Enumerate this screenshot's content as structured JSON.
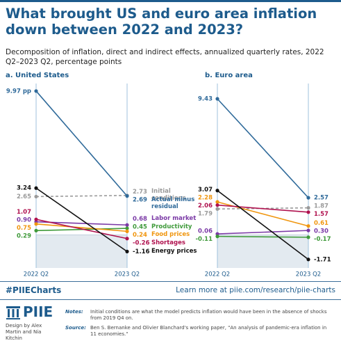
{
  "header": {
    "title": "What brought US and euro area inflation down between 2022 and 2023?",
    "subtitle": "Decomposition of inflation, direct and indirect effects, annualized quarterly rates, 2022 Q2–2023 Q2, percentage points"
  },
  "chart_data": [
    {
      "type": "line",
      "title": "a. United States",
      "categories": [
        "2022 Q2",
        "2023 Q2"
      ],
      "ylim": [
        -2.3,
        10.25
      ],
      "series": [
        {
          "name": "Initial conditions",
          "color": "#9a9a9a",
          "dash": true,
          "values": [
            2.65,
            2.73
          ],
          "value_labels": [
            "2.65",
            "2.73"
          ]
        },
        {
          "name": "Actual minus residual",
          "color": "#2f6a9a",
          "values": [
            9.97,
            2.69
          ],
          "value_labels": [
            "9.97 pp",
            "2.69"
          ]
        },
        {
          "name": "Labor market",
          "color": "#7b3aa6",
          "values": [
            0.9,
            0.68
          ],
          "value_labels": [
            "0.90",
            "0.68"
          ]
        },
        {
          "name": "Productivity",
          "color": "#3f9a3a",
          "values": [
            0.29,
            0.45
          ],
          "value_labels": [
            "0.29",
            "0.45"
          ]
        },
        {
          "name": "Food prices",
          "color": "#f0960f",
          "values": [
            0.75,
            0.24
          ],
          "value_labels": [
            "0.75",
            "0.24"
          ]
        },
        {
          "name": "Shortages",
          "color": "#b0124f",
          "values": [
            1.07,
            -0.26
          ],
          "value_labels": [
            "1.07",
            "-0.26"
          ]
        },
        {
          "name": "Energy prices",
          "color": "#111111",
          "values": [
            3.24,
            -1.16
          ],
          "value_labels": [
            "3.24",
            "-1.16"
          ]
        }
      ]
    },
    {
      "type": "line",
      "title": "b. Euro area",
      "categories": [
        "2022 Q2",
        "2023 Q2"
      ],
      "ylim": [
        -2.3,
        10.25
      ],
      "series": [
        {
          "color": "#9a9a9a",
          "dash": true,
          "values": [
            1.79,
            1.87
          ],
          "value_labels": [
            "1.79",
            "1.87"
          ]
        },
        {
          "color": "#2f6a9a",
          "values": [
            9.43,
            2.57
          ],
          "value_labels": [
            "9.43",
            "2.57"
          ]
        },
        {
          "color": "#7b3aa6",
          "values": [
            0.06,
            0.3
          ],
          "value_labels": [
            "0.06",
            "0.30"
          ]
        },
        {
          "color": "#3f9a3a",
          "values": [
            -0.11,
            -0.17
          ],
          "value_labels": [
            "-0.11",
            "-0.17"
          ]
        },
        {
          "color": "#f0960f",
          "values": [
            2.28,
            0.61
          ],
          "value_labels": [
            "2.28",
            "0.61"
          ]
        },
        {
          "color": "#b0124f",
          "values": [
            2.06,
            1.57
          ],
          "value_labels": [
            "2.06",
            "1.57"
          ]
        },
        {
          "color": "#111111",
          "values": [
            3.07,
            -1.71
          ],
          "value_labels": [
            "3.07",
            "-1.71"
          ]
        }
      ]
    }
  ],
  "footer": {
    "hashtag": "#PIIECharts",
    "link": "Learn more at piie.com/research/piie-charts",
    "logo": "PIIE",
    "credit": "Design by Alex Martin and Nia Kitchin",
    "notes_label": "Notes:",
    "notes": "Initial conditions are what the model predicts inflation would have been in the absence of shocks from 2019 Q4 on.",
    "source_label": "Source:",
    "source": "Ben S. Bernanke and Olivier Blanchard's working paper, \"An analysis of pandemic-era inflation in 11 economies.\""
  }
}
